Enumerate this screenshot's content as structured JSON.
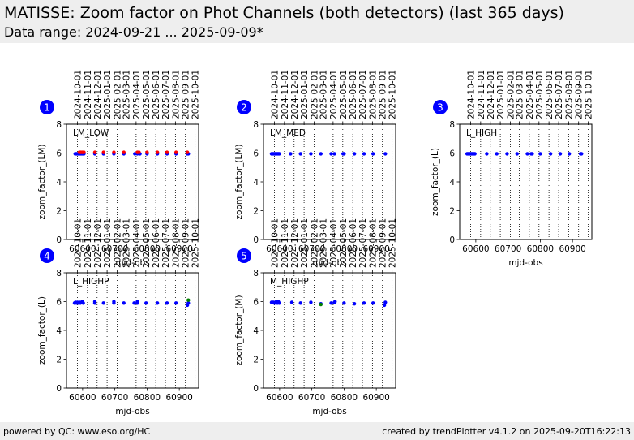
{
  "header": {
    "title": "MATISSE: Zoom factor on Phot Channels (both detectors) (last 365 days)",
    "subtitle": "Data range: 2024-09-21 ... 2025-09-09*"
  },
  "footer": {
    "left": "powered by QC: www.eso.org/HC",
    "right": "created by trendPlotter v4.1.2 on 2025-09-20T16:22:13"
  },
  "colors": {
    "blue": "#0000ff",
    "red": "#ff0000",
    "green": "#008000",
    "badge": "#0000ff"
  },
  "shared_axes": {
    "xlabel": "mjd-obs",
    "xlim": [
      60550,
      60960
    ],
    "xticks": [
      60600,
      60700,
      60800,
      60900
    ],
    "ylim": [
      0,
      8
    ],
    "yticks": [
      0,
      2,
      4,
      6,
      8
    ],
    "top_date_ticks": [
      {
        "label": "2024-10-01",
        "mjd": 60584
      },
      {
        "label": "2024-11-01",
        "mjd": 60615
      },
      {
        "label": "2024-12-01",
        "mjd": 60645
      },
      {
        "label": "2025-01-01",
        "mjd": 60676
      },
      {
        "label": "2025-02-01",
        "mjd": 60707
      },
      {
        "label": "2025-03-01",
        "mjd": 60735
      },
      {
        "label": "2025-04-01",
        "mjd": 60766
      },
      {
        "label": "2025-05-01",
        "mjd": 60796
      },
      {
        "label": "2025-06-01",
        "mjd": 60827
      },
      {
        "label": "2025-07-01",
        "mjd": 60857
      },
      {
        "label": "2025-08-01",
        "mjd": 60888
      },
      {
        "label": "2025-09-01",
        "mjd": 60919
      },
      {
        "label": "2025-10-01",
        "mjd": 60949
      }
    ]
  },
  "chart_data": [
    {
      "type": "scatter",
      "badge": "1",
      "label": "LM_LOW",
      "ylabel": "zoom_factor_(LM)",
      "ylim": [
        0,
        8
      ],
      "grid": "vertical dotted at month starts",
      "series": [
        {
          "color": "#0000ff",
          "points": [
            [
              60577,
              5.95
            ],
            [
              60580,
              5.95
            ],
            [
              60583,
              5.95
            ],
            [
              60586,
              5.95
            ],
            [
              60589,
              5.95
            ],
            [
              60592,
              5.95
            ],
            [
              60595,
              5.95
            ],
            [
              60598,
              5.95
            ],
            [
              60601,
              5.95
            ],
            [
              60604,
              5.95
            ],
            [
              60638,
              5.95
            ],
            [
              60665,
              5.95
            ],
            [
              60697,
              5.95
            ],
            [
              60728,
              5.95
            ],
            [
              60762,
              5.95
            ],
            [
              60770,
              5.95
            ],
            [
              60778,
              5.95
            ],
            [
              60800,
              5.95
            ],
            [
              60832,
              5.95
            ],
            [
              60862,
              5.95
            ],
            [
              60890,
              5.95
            ],
            [
              60925,
              5.95
            ],
            [
              60928,
              5.95
            ]
          ]
        },
        {
          "color": "#ff0000",
          "points": [
            [
              60590,
              6.05
            ],
            [
              60595,
              6.05
            ],
            [
              60600,
              6.05
            ],
            [
              60604,
              6.05
            ],
            [
              60638,
              6.05
            ],
            [
              60665,
              6.05
            ],
            [
              60697,
              6.05
            ],
            [
              60728,
              6.05
            ],
            [
              60770,
              6.05
            ],
            [
              60775,
              6.05
            ],
            [
              60800,
              6.05
            ],
            [
              60832,
              6.05
            ],
            [
              60862,
              6.05
            ],
            [
              60890,
              6.05
            ],
            [
              60925,
              6.05
            ]
          ]
        }
      ]
    },
    {
      "type": "scatter",
      "badge": "2",
      "label": "LM_MED",
      "ylabel": "zoom_factor_(LM)",
      "ylim": [
        0,
        8
      ],
      "grid": "vertical dotted at month starts",
      "series": [
        {
          "color": "#0000ff",
          "points": [
            [
              60575,
              5.95
            ],
            [
              60578,
              5.95
            ],
            [
              60581,
              5.95
            ],
            [
              60584,
              5.95
            ],
            [
              60587,
              5.95
            ],
            [
              60590,
              5.95
            ],
            [
              60593,
              5.95
            ],
            [
              60596,
              5.95
            ],
            [
              60599,
              5.95
            ],
            [
              60634,
              5.95
            ],
            [
              60665,
              5.95
            ],
            [
              60697,
              5.95
            ],
            [
              60728,
              5.95
            ],
            [
              60760,
              5.95
            ],
            [
              60770,
              5.95
            ],
            [
              60797,
              5.95
            ],
            [
              60800,
              5.95
            ],
            [
              60832,
              5.95
            ],
            [
              60862,
              5.95
            ],
            [
              60890,
              5.95
            ],
            [
              60928,
              5.95
            ]
          ]
        }
      ]
    },
    {
      "type": "scatter",
      "badge": "3",
      "label": "L_HIGH",
      "ylabel": "zoom_factor_(L)",
      "ylim": [
        0,
        8
      ],
      "grid": "vertical dotted at month starts",
      "series": [
        {
          "color": "#0000ff",
          "points": [
            [
              60573,
              5.95
            ],
            [
              60576,
              5.95
            ],
            [
              60579,
              5.95
            ],
            [
              60582,
              5.95
            ],
            [
              60585,
              5.95
            ],
            [
              60588,
              5.95
            ],
            [
              60591,
              5.95
            ],
            [
              60594,
              5.95
            ],
            [
              60597,
              5.95
            ],
            [
              60634,
              5.95
            ],
            [
              60665,
              5.95
            ],
            [
              60697,
              5.95
            ],
            [
              60728,
              5.95
            ],
            [
              60760,
              5.95
            ],
            [
              60772,
              5.95
            ],
            [
              60775,
              5.95
            ],
            [
              60800,
              5.95
            ],
            [
              60832,
              5.95
            ],
            [
              60862,
              5.95
            ],
            [
              60890,
              5.95
            ],
            [
              60925,
              5.95
            ],
            [
              60928,
              5.95
            ]
          ]
        }
      ]
    },
    {
      "type": "scatter",
      "badge": "4",
      "label": "L_HIGHP",
      "ylabel": "zoom_factor_(L)",
      "ylim": [
        0,
        8
      ],
      "grid": "vertical dotted at month starts",
      "series": [
        {
          "color": "#0000ff",
          "points": [
            [
              60575,
              5.9
            ],
            [
              60578,
              5.95
            ],
            [
              60581,
              5.9
            ],
            [
              60584,
              5.95
            ],
            [
              60587,
              5.9
            ],
            [
              60590,
              5.95
            ],
            [
              60593,
              5.9
            ],
            [
              60596,
              5.95
            ],
            [
              60599,
              6.0
            ],
            [
              60602,
              5.9
            ],
            [
              60638,
              5.9
            ],
            [
              60638,
              6.0
            ],
            [
              60665,
              5.9
            ],
            [
              60697,
              5.9
            ],
            [
              60697,
              6.0
            ],
            [
              60728,
              5.9
            ],
            [
              60760,
              5.9
            ],
            [
              60770,
              5.9
            ],
            [
              60770,
              6.0
            ],
            [
              60797,
              5.9
            ],
            [
              60832,
              5.9
            ],
            [
              60862,
              5.9
            ],
            [
              60890,
              5.9
            ],
            [
              60925,
              5.75
            ],
            [
              60928,
              5.9
            ]
          ]
        },
        {
          "color": "#008000",
          "points": [
            [
              60928,
              6.1
            ]
          ]
        }
      ]
    },
    {
      "type": "scatter",
      "badge": "5",
      "label": "M_HIGHP",
      "ylabel": "zoom_factor_(M)",
      "ylim": [
        0,
        8
      ],
      "grid": "vertical dotted at month starts",
      "series": [
        {
          "color": "#0000ff",
          "points": [
            [
              60575,
              5.95
            ],
            [
              60578,
              5.95
            ],
            [
              60581,
              5.95
            ],
            [
              60584,
              5.9
            ],
            [
              60587,
              5.95
            ],
            [
              60590,
              6.0
            ],
            [
              60593,
              5.9
            ],
            [
              60596,
              6.0
            ],
            [
              60599,
              5.9
            ],
            [
              60638,
              5.95
            ],
            [
              60665,
              5.9
            ],
            [
              60697,
              5.95
            ],
            [
              60728,
              5.85
            ],
            [
              60760,
              5.9
            ],
            [
              60770,
              5.95
            ],
            [
              60772,
              6.0
            ],
            [
              60800,
              5.9
            ],
            [
              60832,
              5.85
            ],
            [
              60862,
              5.9
            ],
            [
              60890,
              5.9
            ],
            [
              60925,
              5.75
            ],
            [
              60928,
              5.95
            ]
          ]
        },
        {
          "color": "#008000",
          "points": [
            [
              60728,
              5.8
            ]
          ]
        }
      ]
    }
  ]
}
